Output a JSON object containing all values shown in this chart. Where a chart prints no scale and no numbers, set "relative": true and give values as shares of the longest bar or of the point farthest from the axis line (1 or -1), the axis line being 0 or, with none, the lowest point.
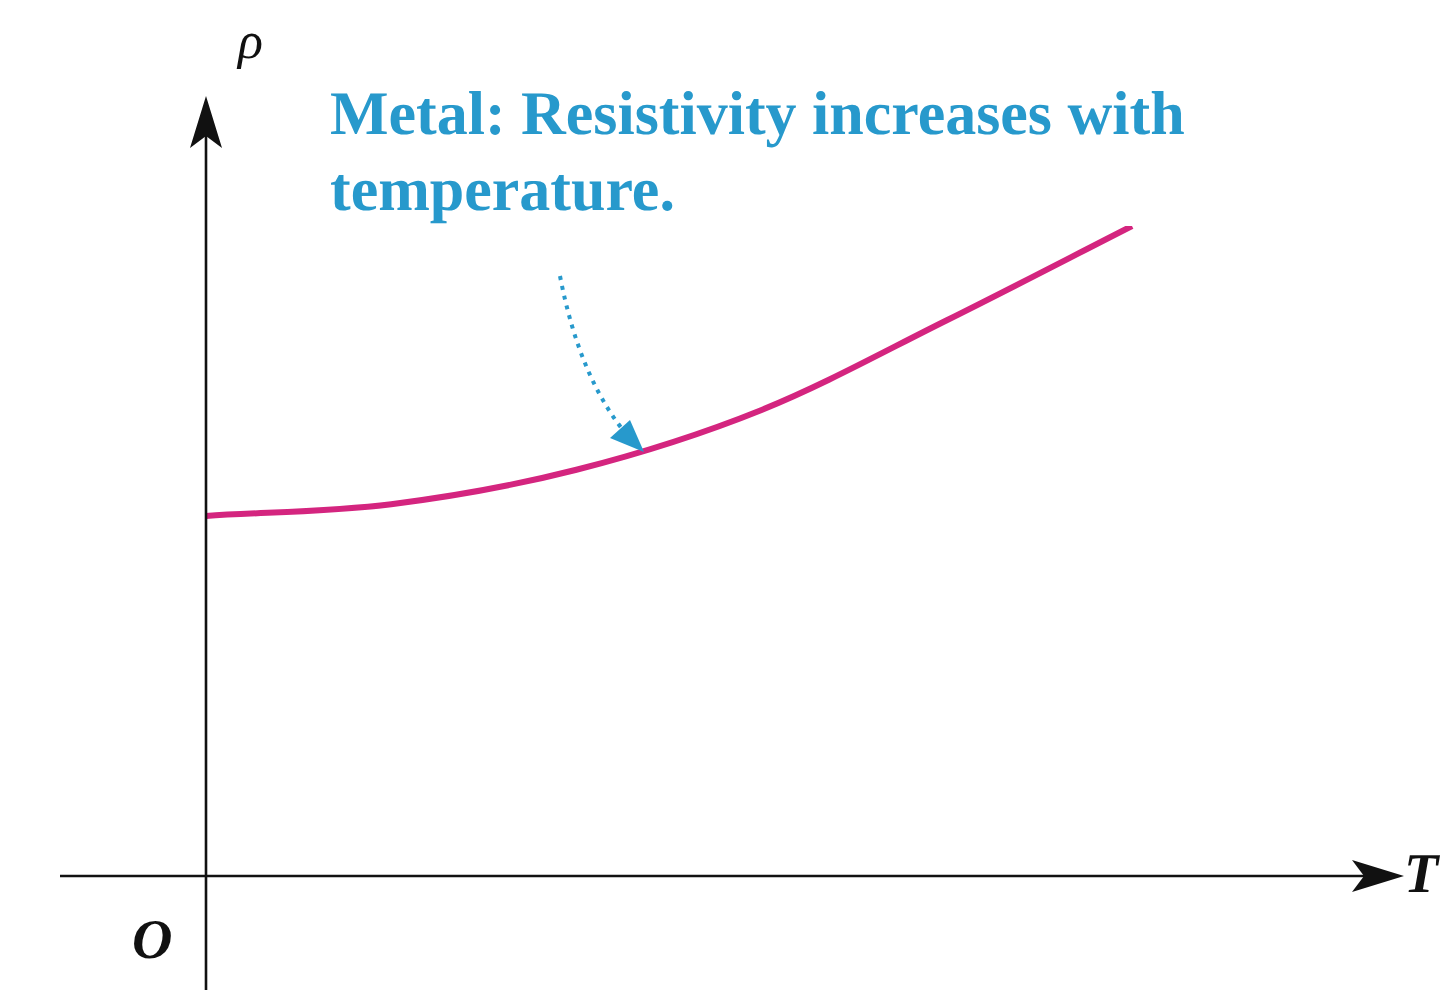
{
  "chart_data": {
    "type": "line",
    "xlabel": "T",
    "ylabel": "ρ",
    "annotations": [
      "O",
      "Metal: Resistivity increases with temperature."
    ],
    "categories": [
      null,
      null,
      null,
      null,
      null,
      null
    ],
    "series": [
      {
        "color": "#d4257f",
        "values": [
          0.554,
          0.572,
          0.625,
          0.717,
          0.855,
          1
        ]
      }
    ],
    "relative": true,
    "legend": false,
    "marker": "none",
    "line_style": "solid"
  }
}
